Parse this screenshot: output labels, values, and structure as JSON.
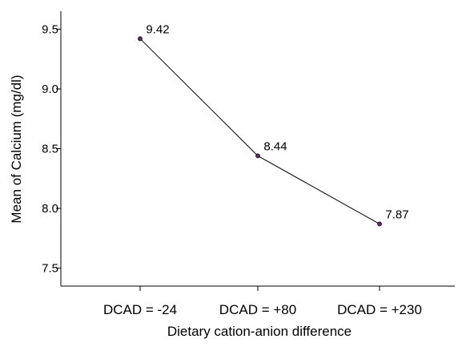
{
  "chart_data": {
    "type": "line",
    "title": "",
    "xlabel": "Dietary cation-anion difference",
    "ylabel": "Mean of Calcium (mg/dl)",
    "categories": [
      "DCAD = -24",
      "DCAD = +80",
      "DCAD = +230"
    ],
    "series": [
      {
        "values": [
          9.42,
          8.44,
          7.87
        ],
        "data_labels": [
          "9.42",
          "8.44",
          "7.87"
        ]
      }
    ],
    "ylim": [
      7.35,
      9.65
    ],
    "yticks": [
      {
        "value": 7.5,
        "label": "7.5"
      },
      {
        "value": 8.0,
        "label": "8.0"
      },
      {
        "value": 8.5,
        "label": "8.5"
      },
      {
        "value": 9.0,
        "label": "9.0"
      },
      {
        "value": 9.5,
        "label": "9.5"
      }
    ],
    "grid": false,
    "legend": "none",
    "colors": {
      "line": "#000000",
      "marker": "#5a2a5a",
      "axis": "#000000"
    }
  }
}
